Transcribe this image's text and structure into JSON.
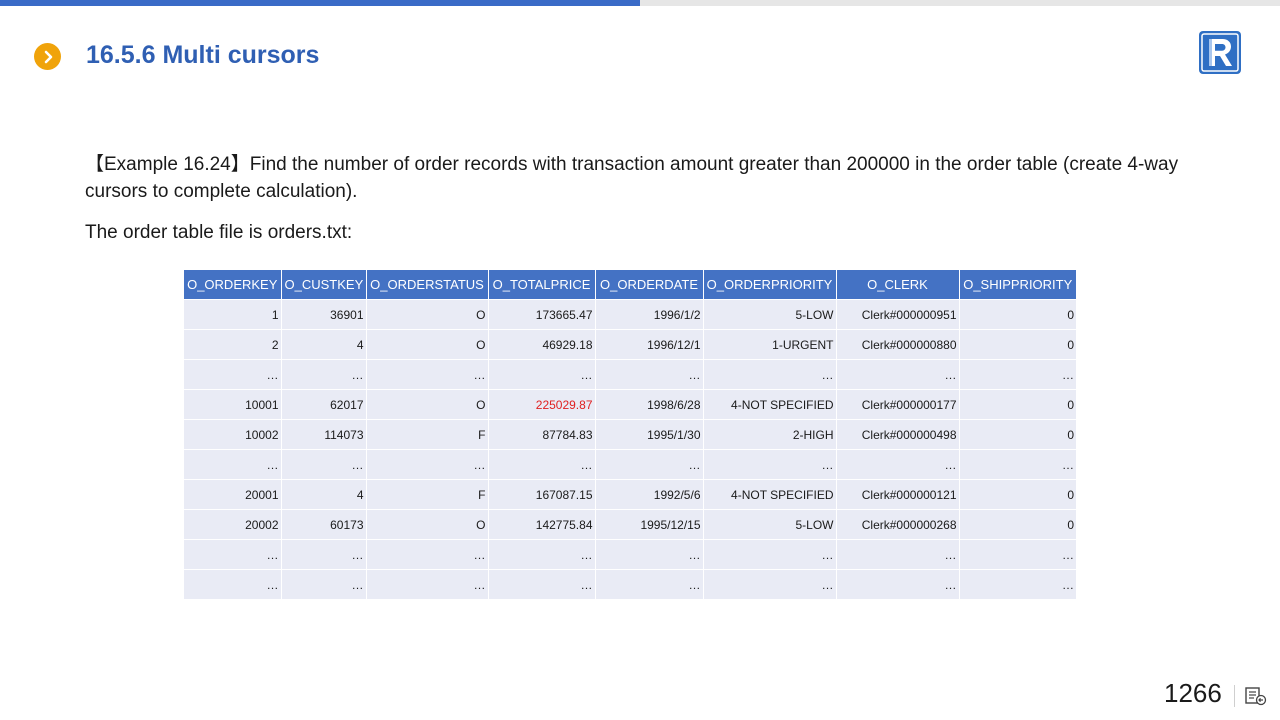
{
  "progress": {
    "fraction": 0.5,
    "accent_color": "#3a6bc7"
  },
  "header": {
    "title": "16.5.6 Multi cursors",
    "bullet_icon": "chevron-right-icon",
    "bullet_color": "#f0a30a",
    "logo_icon": "r-logo-icon"
  },
  "content": {
    "paragraph1": "【Example 16.24】Find the number of order records with transaction amount greater than 200000 in the order table (create 4-way cursors to complete calculation).",
    "paragraph2": "The order table file is orders.txt:"
  },
  "table": {
    "columns": [
      "O_ORDERKEY",
      "O_CUSTKEY",
      "O_ORDERSTATUS",
      "O_TOTALPRICE",
      "O_ORDERDATE",
      "O_ORDERPRIORITY",
      "O_CLERK",
      "O_SHIPPRIORITY"
    ],
    "rows": [
      [
        "1",
        "36901",
        "O",
        "173665.47",
        "1996/1/2",
        "5-LOW",
        "Clerk#000000951",
        "0"
      ],
      [
        "2",
        "4",
        "O",
        "46929.18",
        "1996/12/1",
        "1-URGENT",
        "Clerk#000000880",
        "0"
      ],
      [
        "…",
        "…",
        "…",
        "…",
        "…",
        "…",
        "…",
        "…"
      ],
      [
        "10001",
        "62017",
        "O",
        "225029.87",
        "1998/6/28",
        "4-NOT SPECIFIED",
        "Clerk#000000177",
        "0"
      ],
      [
        "10002",
        "114073",
        "F",
        "87784.83",
        "1995/1/30",
        "2-HIGH",
        "Clerk#000000498",
        "0"
      ],
      [
        "…",
        "…",
        "…",
        "…",
        "…",
        "…",
        "…",
        "…"
      ],
      [
        "20001",
        "4",
        "F",
        "167087.15",
        "1992/5/6",
        "4-NOT SPECIFIED",
        "Clerk#000000121",
        "0"
      ],
      [
        "20002",
        "60173",
        "O",
        "142775.84",
        "1995/12/15",
        "5-LOW",
        "Clerk#000000268",
        "0"
      ],
      [
        "…",
        "…",
        "…",
        "…",
        "…",
        "…",
        "…",
        "…"
      ],
      [
        "…",
        "…",
        "…",
        "…",
        "…",
        "…",
        "…",
        "…"
      ]
    ],
    "highlight_color": "#e02020",
    "header_color": "#4472c4",
    "row_color": "#e9ebf5"
  },
  "footer": {
    "page_number": "1266",
    "notes_icon": "notes-icon"
  }
}
